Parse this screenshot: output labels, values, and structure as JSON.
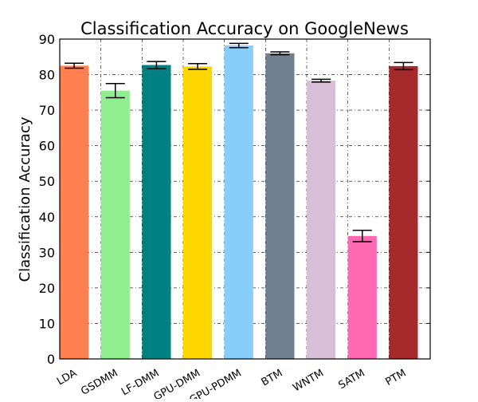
{
  "chart_data": {
    "type": "bar",
    "title": "Classification Accuracy on GoogleNews",
    "y_label": "Classification Accuracy",
    "categories": [
      "LDA",
      "GSDMM",
      "LF-DMM",
      "GPU-DMM",
      "GPU-PDMM",
      "BTM",
      "WNTM",
      "SATM",
      "PTM"
    ],
    "values": [
      82.5,
      75.5,
      82.7,
      82.3,
      88.2,
      86.0,
      78.3,
      34.6,
      82.4
    ],
    "errors": [
      0.7,
      2.0,
      1.0,
      0.8,
      0.6,
      0.4,
      0.4,
      1.6,
      1.0
    ],
    "colors": [
      "#ff7f50",
      "#90ee90",
      "#008080",
      "#ffd700",
      "#87cefa",
      "#708090",
      "#d8bfd8",
      "#ff69b4",
      "#a52a2a"
    ],
    "ylim": [
      0,
      90
    ],
    "yticks": [
      0,
      10,
      20,
      30,
      40,
      50,
      60,
      70,
      80,
      90
    ],
    "grid": true
  }
}
